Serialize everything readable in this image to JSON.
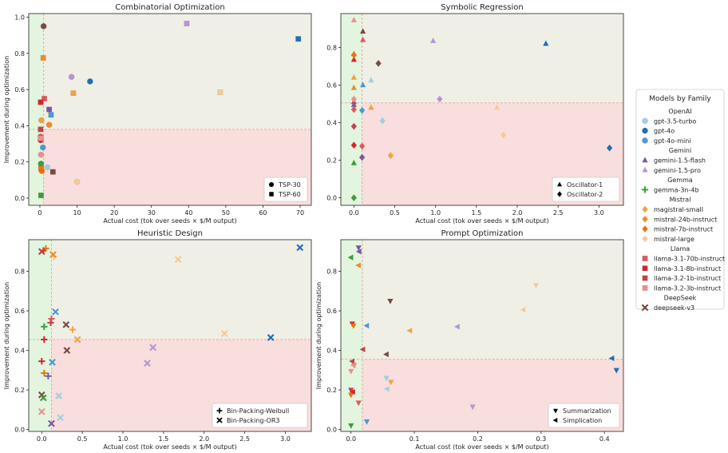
{
  "families_title": "Models by Family",
  "models": [
    {
      "id": "gpt35",
      "label": "gpt-3.5-turbo",
      "family": "OpenAI",
      "color": "#9fcfe6"
    },
    {
      "id": "gpt4o",
      "label": "gpt-4o",
      "family": "OpenAI",
      "color": "#1f6fb4"
    },
    {
      "id": "gpt4omini",
      "label": "gpt-4o-mini",
      "family": "OpenAI",
      "color": "#4a9ad4"
    },
    {
      "id": "gem15flash",
      "label": "gemini-1.5-flash",
      "family": "Gemini",
      "color": "#7b55a8"
    },
    {
      "id": "gem15pro",
      "label": "gemini-1.5-pro",
      "family": "Gemini",
      "color": "#b495d6"
    },
    {
      "id": "gemma3n",
      "label": "gemma-3n-4b",
      "family": "Gemma",
      "color": "#3a9e3a"
    },
    {
      "id": "magsmall",
      "label": "magistral-small",
      "family": "Mistral",
      "color": "#f4a23c"
    },
    {
      "id": "mis24b",
      "label": "mistral-24b-instruct",
      "family": "Mistral",
      "color": "#f08a2c"
    },
    {
      "id": "mis7b",
      "label": "mistral-7b-instruct",
      "family": "Mistral",
      "color": "#e8740e"
    },
    {
      "id": "mislarge",
      "label": "mistral-large",
      "family": "Mistral",
      "color": "#f7c99a"
    },
    {
      "id": "ll70",
      "label": "llama-3.1-70b-instruct",
      "family": "Llama",
      "color": "#e0575c"
    },
    {
      "id": "ll8",
      "label": "llama-3.1-8b-instruct",
      "family": "Llama",
      "color": "#d3262b"
    },
    {
      "id": "ll1",
      "label": "llama-3.2-1b-instruct",
      "family": "Llama",
      "color": "#c04448"
    },
    {
      "id": "ll3",
      "label": "llama-3.2-3b-instruct",
      "family": "Llama",
      "color": "#ee8e90"
    },
    {
      "id": "dsv3",
      "label": "deepseek-v3",
      "family": "DeepSeek",
      "color": "#7a4a40"
    }
  ],
  "families": [
    "OpenAI",
    "Gemini",
    "Gemma",
    "Mistral",
    "Llama",
    "DeepSeek"
  ],
  "chart_data": [
    {
      "type": "scatter",
      "title": "Combinatorial Optimization",
      "xlabel": "Actual cost (tok over seeds × $/M output)",
      "ylabel": "Improvement during optimization",
      "xlim": [
        -3,
        73
      ],
      "ylim": [
        -0.04,
        1.02
      ],
      "xticks": [
        0,
        10,
        20,
        30,
        40,
        50,
        60,
        70
      ],
      "xtick_labels": [
        "0",
        "10",
        "20",
        "30",
        "40",
        "50",
        "60",
        "70"
      ],
      "yticks": [
        0,
        0.2,
        0.4,
        0.6,
        0.8,
        1.0
      ],
      "ytick_labels": [
        "0.0",
        "0.2",
        "0.4",
        "0.6",
        "0.8",
        "1.0"
      ],
      "ref_x": 1.0,
      "ref_y": 0.38,
      "legend": {
        "position": "bottom-right",
        "entries": [
          {
            "label": "TSP-30",
            "marker": "circle"
          },
          {
            "label": "TSP-60",
            "marker": "square"
          }
        ]
      },
      "points": [
        {
          "x": 1.0,
          "y": 0.95,
          "m": "circle",
          "s": "dsv3"
        },
        {
          "x": 8.5,
          "y": 0.67,
          "m": "circle",
          "s": "gem15pro"
        },
        {
          "x": 13.5,
          "y": 0.645,
          "m": "circle",
          "s": "gpt4o"
        },
        {
          "x": 0.4,
          "y": 0.43,
          "m": "circle",
          "s": "magsmall"
        },
        {
          "x": 2.5,
          "y": 0.405,
          "m": "circle",
          "s": "mis24b"
        },
        {
          "x": 0.2,
          "y": 0.34,
          "m": "circle",
          "s": "ll70"
        },
        {
          "x": 0.2,
          "y": 0.32,
          "m": "circle",
          "s": "ll8"
        },
        {
          "x": 0.8,
          "y": 0.28,
          "m": "circle",
          "s": "gpt4omini"
        },
        {
          "x": 0.3,
          "y": 0.24,
          "m": "circle",
          "s": "ll3"
        },
        {
          "x": 0.3,
          "y": 0.19,
          "m": "circle",
          "s": "gemma3n"
        },
        {
          "x": 2.0,
          "y": 0.17,
          "m": "circle",
          "s": "gpt35"
        },
        {
          "x": 0.5,
          "y": 0.15,
          "m": "circle",
          "s": "mis7b"
        },
        {
          "x": 10.0,
          "y": 0.09,
          "m": "circle",
          "s": "mislarge"
        },
        {
          "x": 39.5,
          "y": 0.965,
          "m": "square",
          "s": "gem15pro"
        },
        {
          "x": 69.5,
          "y": 0.88,
          "m": "square",
          "s": "gpt4o"
        },
        {
          "x": 0.9,
          "y": 0.775,
          "m": "square",
          "s": "mis24b"
        },
        {
          "x": 9.0,
          "y": 0.58,
          "m": "square",
          "s": "magsmall"
        },
        {
          "x": 48.5,
          "y": 0.585,
          "m": "square",
          "s": "mislarge"
        },
        {
          "x": 1.2,
          "y": 0.55,
          "m": "square",
          "s": "ll70"
        },
        {
          "x": 0.2,
          "y": 0.53,
          "m": "square",
          "s": "ll8"
        },
        {
          "x": 2.5,
          "y": 0.49,
          "m": "square",
          "s": "gem15flash"
        },
        {
          "x": 3.0,
          "y": 0.46,
          "m": "square",
          "s": "gpt4omini"
        },
        {
          "x": 0.2,
          "y": 0.38,
          "m": "square",
          "s": "ll1"
        },
        {
          "x": 0.2,
          "y": 0.33,
          "m": "square",
          "s": "ll3"
        },
        {
          "x": 0.3,
          "y": 0.165,
          "m": "square",
          "s": "mis7b"
        },
        {
          "x": 3.5,
          "y": 0.145,
          "m": "square",
          "s": "dsv3"
        },
        {
          "x": 0.3,
          "y": 0.015,
          "m": "square",
          "s": "gemma3n"
        }
      ]
    },
    {
      "type": "scatter",
      "title": "Symbolic Regression",
      "xlabel": "Actual cost (tok over seeds × $/M output)",
      "ylabel": "",
      "xlim": [
        -0.16,
        3.3
      ],
      "ylim": [
        -0.04,
        0.98
      ],
      "xticks": [
        0,
        0.5,
        1.0,
        1.5,
        2.0,
        2.5,
        3.0
      ],
      "xtick_labels": [
        "0.0",
        "0.5",
        "1.0",
        "1.5",
        "2.0",
        "2.5",
        "3.0"
      ],
      "yticks": [
        0,
        0.2,
        0.4,
        0.6,
        0.8
      ],
      "ytick_labels": [
        "0.0",
        "0.2",
        "0.4",
        "0.6",
        "0.8"
      ],
      "ref_x": 0.1,
      "ref_y": 0.505,
      "legend": {
        "position": "bottom-right",
        "entries": [
          {
            "label": "Oscillator-1",
            "marker": "triangle-up"
          },
          {
            "label": "Oscillator-2",
            "marker": "diamond"
          }
        ]
      },
      "points": [
        {
          "x": 0.0,
          "y": 0.945,
          "m": "triangle-up",
          "s": "ll3"
        },
        {
          "x": 0.11,
          "y": 0.84,
          "m": "triangle-up",
          "s": "ll70"
        },
        {
          "x": 0.11,
          "y": 0.885,
          "m": "triangle-up",
          "s": "dsv3"
        },
        {
          "x": 0.97,
          "y": 0.835,
          "m": "triangle-up",
          "s": "gem15pro"
        },
        {
          "x": 2.35,
          "y": 0.82,
          "m": "triangle-up",
          "s": "gpt4o"
        },
        {
          "x": 0.0,
          "y": 0.765,
          "m": "triangle-up",
          "s": "mis7b"
        },
        {
          "x": 0.0,
          "y": 0.735,
          "m": "triangle-up",
          "s": "ll8"
        },
        {
          "x": 0.0,
          "y": 0.64,
          "m": "triangle-up",
          "s": "magsmall"
        },
        {
          "x": 0.11,
          "y": 0.6,
          "m": "triangle-up",
          "s": "gpt4omini"
        },
        {
          "x": 0.21,
          "y": 0.625,
          "m": "triangle-up",
          "s": "gpt35"
        },
        {
          "x": 0.0,
          "y": 0.585,
          "m": "triangle-up",
          "s": "mis24b"
        },
        {
          "x": 0.0,
          "y": 0.51,
          "m": "triangle-up",
          "s": "ll1"
        },
        {
          "x": 0.0,
          "y": 0.495,
          "m": "triangle-up",
          "s": "gem15flash"
        },
        {
          "x": 0.21,
          "y": 0.48,
          "m": "triangle-up",
          "s": "magsmall"
        },
        {
          "x": 1.75,
          "y": 0.48,
          "m": "triangle-up",
          "s": "mislarge"
        },
        {
          "x": 0.0,
          "y": 0.185,
          "m": "triangle-up",
          "s": "gemma3n"
        },
        {
          "x": 0.0,
          "y": 0.76,
          "m": "diamond",
          "s": "mis7b"
        },
        {
          "x": 0.3,
          "y": 0.715,
          "m": "diamond",
          "s": "dsv3"
        },
        {
          "x": 1.05,
          "y": 0.525,
          "m": "diamond",
          "s": "gem15pro"
        },
        {
          "x": 0.0,
          "y": 0.525,
          "m": "diamond",
          "s": "ll3"
        },
        {
          "x": 0.0,
          "y": 0.47,
          "m": "diamond",
          "s": "ll70"
        },
        {
          "x": 0.1,
          "y": 0.465,
          "m": "diamond",
          "s": "gpt4omini"
        },
        {
          "x": 0.35,
          "y": 0.41,
          "m": "diamond",
          "s": "gpt35"
        },
        {
          "x": 0.0,
          "y": 0.38,
          "m": "diamond",
          "s": "ll1"
        },
        {
          "x": 1.83,
          "y": 0.335,
          "m": "diamond",
          "s": "mislarge"
        },
        {
          "x": 0.0,
          "y": 0.28,
          "m": "diamond",
          "s": "ll8"
        },
        {
          "x": 0.1,
          "y": 0.275,
          "m": "diamond",
          "s": "ll70"
        },
        {
          "x": 3.13,
          "y": 0.265,
          "m": "diamond",
          "s": "gpt4o"
        },
        {
          "x": 0.45,
          "y": 0.225,
          "m": "diamond",
          "s": "magsmall"
        },
        {
          "x": 0.1,
          "y": 0.215,
          "m": "diamond",
          "s": "gem15flash"
        },
        {
          "x": 0.0,
          "y": 0.0,
          "m": "diamond",
          "s": "gemma3n"
        }
      ]
    },
    {
      "type": "scatter",
      "title": "Heuristic Design",
      "xlabel": "Actual cost (tok over seeds × $/M output)",
      "ylabel": "Improvement during optimization",
      "xlim": [
        -0.16,
        3.32
      ],
      "ylim": [
        -0.01,
        0.96
      ],
      "xticks": [
        0,
        0.5,
        1.0,
        1.5,
        2.0,
        2.5,
        3.0
      ],
      "xtick_labels": [
        "0.0",
        "0.5",
        "1.0",
        "1.5",
        "2.0",
        "2.5",
        "3.0"
      ],
      "yticks": [
        0,
        0.2,
        0.4,
        0.6,
        0.8
      ],
      "ytick_labels": [
        "0.0",
        "0.2",
        "0.4",
        "0.6",
        "0.8"
      ],
      "ref_x": 0.12,
      "ref_y": 0.455,
      "legend": {
        "position": "bottom-right",
        "entries": [
          {
            "label": "Bin-Packing-Weibull",
            "marker": "plus"
          },
          {
            "label": "Bin-Packing-OR3",
            "marker": "x"
          }
        ]
      },
      "points": [
        {
          "x": 0.02,
          "y": 0.905,
          "m": "plus",
          "s": "ll8"
        },
        {
          "x": 0.05,
          "y": 0.915,
          "m": "plus",
          "s": "mis7b"
        },
        {
          "x": 0.15,
          "y": 0.875,
          "m": "plus",
          "s": "mislarge"
        },
        {
          "x": 0.12,
          "y": 0.56,
          "m": "plus",
          "s": "ll70"
        },
        {
          "x": 0.11,
          "y": 0.54,
          "m": "plus",
          "s": "ll1"
        },
        {
          "x": 0.03,
          "y": 0.52,
          "m": "plus",
          "s": "gemma3n"
        },
        {
          "x": 0.38,
          "y": 0.505,
          "m": "plus",
          "s": "magsmall"
        },
        {
          "x": 0.03,
          "y": 0.455,
          "m": "plus",
          "s": "ll8"
        },
        {
          "x": 0.0,
          "y": 0.345,
          "m": "plus",
          "s": "ll8"
        },
        {
          "x": 0.03,
          "y": 0.285,
          "m": "plus",
          "s": "mis7b"
        },
        {
          "x": 0.08,
          "y": 0.27,
          "m": "plus",
          "s": "gem15flash"
        },
        {
          "x": 0.0,
          "y": 0.9,
          "m": "x",
          "s": "ll1"
        },
        {
          "x": 0.14,
          "y": 0.885,
          "m": "x",
          "s": "mis24b"
        },
        {
          "x": 1.68,
          "y": 0.86,
          "m": "x",
          "s": "mislarge"
        },
        {
          "x": 3.18,
          "y": 0.92,
          "m": "x",
          "s": "gpt4o"
        },
        {
          "x": 0.17,
          "y": 0.595,
          "m": "x",
          "s": "gpt4omini"
        },
        {
          "x": 0.3,
          "y": 0.53,
          "m": "x",
          "s": "dsv3"
        },
        {
          "x": 2.25,
          "y": 0.485,
          "m": "x",
          "s": "mislarge"
        },
        {
          "x": 0.44,
          "y": 0.455,
          "m": "x",
          "s": "magsmall"
        },
        {
          "x": 2.82,
          "y": 0.465,
          "m": "x",
          "s": "gpt4o"
        },
        {
          "x": 1.37,
          "y": 0.415,
          "m": "x",
          "s": "gem15pro"
        },
        {
          "x": 0.31,
          "y": 0.4,
          "m": "x",
          "s": "dsv3"
        },
        {
          "x": 0.13,
          "y": 0.34,
          "m": "x",
          "s": "gpt4omini"
        },
        {
          "x": 1.3,
          "y": 0.335,
          "m": "x",
          "s": "gem15pro"
        },
        {
          "x": 0.0,
          "y": 0.175,
          "m": "x",
          "s": "dsv3"
        },
        {
          "x": 0.02,
          "y": 0.16,
          "m": "x",
          "s": "gemma3n"
        },
        {
          "x": 0.21,
          "y": 0.17,
          "m": "x",
          "s": "gpt35"
        },
        {
          "x": 0.0,
          "y": 0.09,
          "m": "x",
          "s": "ll3"
        },
        {
          "x": 0.23,
          "y": 0.06,
          "m": "x",
          "s": "gpt35"
        },
        {
          "x": 0.12,
          "y": 0.03,
          "m": "x",
          "s": "gem15flash"
        }
      ]
    },
    {
      "type": "scatter",
      "title": "Prompt Optimization",
      "xlabel": "Actual cost (tok over seeds × $/M output)",
      "ylabel": "Improvement during optimization",
      "xlim": [
        -0.016,
        0.43
      ],
      "ylim": [
        -0.01,
        0.96
      ],
      "xticks": [
        0,
        0.1,
        0.2,
        0.3,
        0.4
      ],
      "xtick_labels": [
        "0.0",
        "0.1",
        "0.2",
        "0.3",
        "0.4"
      ],
      "yticks": [
        0,
        0.2,
        0.4,
        0.6,
        0.8
      ],
      "ytick_labels": [
        "0.0",
        "0.2",
        "0.4",
        "0.6",
        "0.8"
      ],
      "ref_x": 0.018,
      "ref_y": 0.355,
      "legend": {
        "position": "bottom-right",
        "entries": [
          {
            "label": "Summarization",
            "marker": "triangle-down"
          },
          {
            "label": "Simplication",
            "marker": "triangle-left"
          }
        ]
      },
      "points": [
        {
          "x": 0.012,
          "y": 0.92,
          "m": "triangle-down",
          "s": "gem15flash"
        },
        {
          "x": 0.062,
          "y": 0.65,
          "m": "triangle-down",
          "s": "dsv3"
        },
        {
          "x": 0.002,
          "y": 0.535,
          "m": "triangle-down",
          "s": "ll8"
        },
        {
          "x": 0.004,
          "y": 0.525,
          "m": "triangle-down",
          "s": "mis7b"
        },
        {
          "x": 0.292,
          "y": 0.73,
          "m": "triangle-down",
          "s": "mislarge"
        },
        {
          "x": 0.419,
          "y": 0.3,
          "m": "triangle-down",
          "s": "gpt4o"
        },
        {
          "x": 0.005,
          "y": 0.325,
          "m": "triangle-down",
          "s": "mis24b"
        },
        {
          "x": 0.0,
          "y": 0.295,
          "m": "triangle-down",
          "s": "ll3"
        },
        {
          "x": 0.056,
          "y": 0.26,
          "m": "triangle-down",
          "s": "gpt35"
        },
        {
          "x": 0.063,
          "y": 0.24,
          "m": "triangle-down",
          "s": "magsmall"
        },
        {
          "x": 0.0,
          "y": 0.2,
          "m": "triangle-down",
          "s": "ll1"
        },
        {
          "x": 0.0,
          "y": 0.175,
          "m": "triangle-down",
          "s": "mis7b"
        },
        {
          "x": 0.012,
          "y": 0.135,
          "m": "triangle-down",
          "s": "ll70"
        },
        {
          "x": 0.192,
          "y": 0.115,
          "m": "triangle-down",
          "s": "gem15pro"
        },
        {
          "x": 0.025,
          "y": 0.04,
          "m": "triangle-down",
          "s": "gpt4omini"
        },
        {
          "x": 0.0,
          "y": 0.02,
          "m": "triangle-down",
          "s": "gemma3n"
        },
        {
          "x": 0.0,
          "y": 0.87,
          "m": "triangle-left",
          "s": "gemma3n"
        },
        {
          "x": 0.013,
          "y": 0.9,
          "m": "triangle-left",
          "s": "gem15flash"
        },
        {
          "x": 0.012,
          "y": 0.83,
          "m": "triangle-left",
          "s": "mis24b"
        },
        {
          "x": 0.272,
          "y": 0.605,
          "m": "triangle-left",
          "s": "mislarge"
        },
        {
          "x": 0.025,
          "y": 0.525,
          "m": "triangle-left",
          "s": "gpt4omini"
        },
        {
          "x": 0.093,
          "y": 0.5,
          "m": "triangle-left",
          "s": "magsmall"
        },
        {
          "x": 0.168,
          "y": 0.52,
          "m": "triangle-left",
          "s": "gem15pro"
        },
        {
          "x": 0.019,
          "y": 0.405,
          "m": "triangle-left",
          "s": "ll1"
        },
        {
          "x": 0.056,
          "y": 0.38,
          "m": "triangle-left",
          "s": "dsv3"
        },
        {
          "x": 0.412,
          "y": 0.36,
          "m": "triangle-left",
          "s": "gpt4o"
        },
        {
          "x": 0.002,
          "y": 0.345,
          "m": "triangle-left",
          "s": "ll1"
        },
        {
          "x": 0.004,
          "y": 0.325,
          "m": "triangle-left",
          "s": "ll3"
        },
        {
          "x": 0.057,
          "y": 0.205,
          "m": "triangle-left",
          "s": "gpt35"
        },
        {
          "x": 0.003,
          "y": 0.19,
          "m": "triangle-left",
          "s": "ll8"
        }
      ]
    }
  ]
}
